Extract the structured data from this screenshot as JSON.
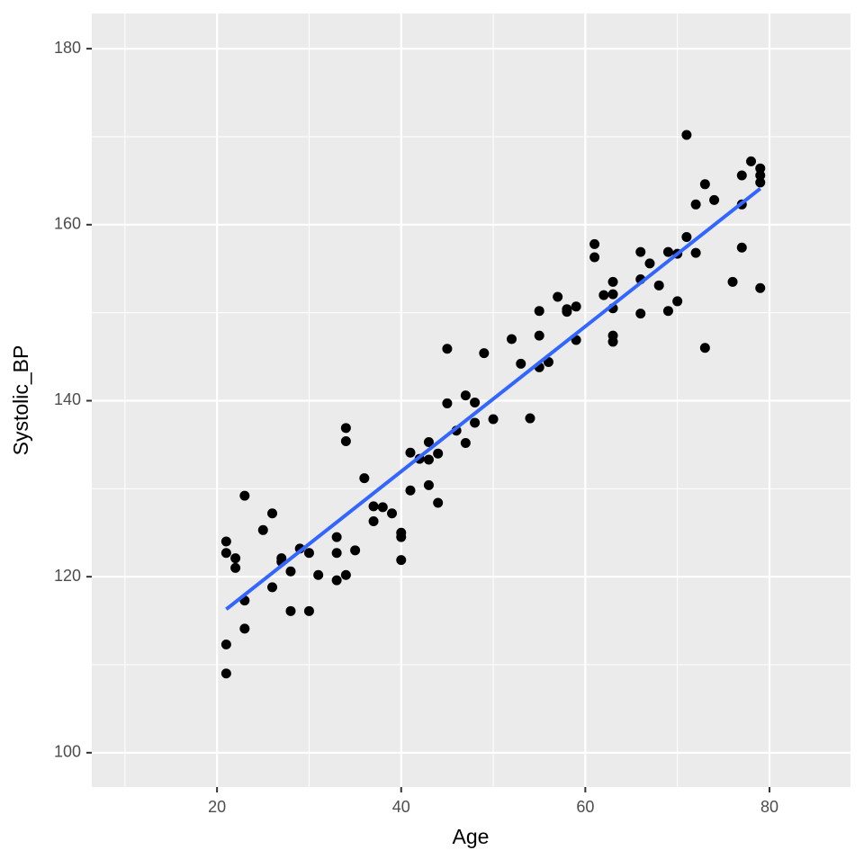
{
  "chart_data": {
    "type": "scatter",
    "xlabel": "Age",
    "ylabel": "Systolic_BP",
    "x": [
      21,
      21,
      21,
      21,
      22,
      22,
      23,
      23,
      23,
      25,
      26,
      26,
      27,
      27,
      28,
      28,
      29,
      30,
      30,
      31,
      33,
      33,
      33,
      34,
      34,
      34,
      35,
      36,
      37,
      37,
      38,
      39,
      40,
      40,
      40,
      41,
      41,
      42,
      43,
      43,
      43,
      44,
      44,
      45,
      45,
      46,
      47,
      47,
      48,
      48,
      49,
      50,
      52,
      53,
      54,
      55,
      55,
      55,
      56,
      57,
      58,
      58,
      59,
      59,
      61,
      61,
      62,
      63,
      63,
      63,
      63,
      63,
      66,
      66,
      66,
      67,
      68,
      69,
      69,
      70,
      70,
      71,
      71,
      72,
      72,
      73,
      73,
      74,
      76,
      77,
      77,
      77,
      78,
      79,
      79,
      79,
      79
    ],
    "y": [
      124.0,
      122.7,
      112.3,
      109.0,
      122.1,
      121.0,
      129.2,
      117.3,
      114.1,
      125.3,
      127.2,
      118.8,
      122.1,
      121.7,
      120.6,
      116.1,
      123.2,
      122.7,
      116.1,
      120.2,
      124.5,
      122.7,
      119.6,
      136.9,
      135.4,
      120.2,
      123.0,
      131.2,
      128.0,
      126.3,
      127.9,
      127.2,
      125.0,
      124.5,
      121.9,
      134.1,
      129.8,
      133.4,
      135.3,
      133.3,
      130.4,
      134.0,
      128.4,
      139.7,
      145.9,
      136.6,
      140.6,
      135.2,
      139.8,
      137.5,
      145.4,
      137.9,
      147.0,
      144.2,
      138.0,
      150.2,
      147.4,
      143.8,
      144.4,
      151.8,
      150.4,
      150.1,
      150.7,
      146.9,
      157.8,
      156.3,
      152.0,
      153.5,
      152.1,
      150.5,
      147.4,
      146.7,
      156.9,
      153.8,
      149.9,
      155.6,
      153.1,
      156.9,
      150.2,
      156.7,
      151.3,
      170.2,
      158.6,
      162.3,
      156.8,
      164.6,
      146.0,
      162.8,
      153.5,
      165.6,
      162.3,
      157.4,
      167.2,
      166.4,
      165.6,
      164.8,
      152.8
    ],
    "color": "#000000",
    "fit_line": {
      "color": "#3366FF",
      "x": [
        21,
        79
      ],
      "y": [
        116.3,
        164.1
      ]
    },
    "xlim": [
      6.4,
      88.8
    ],
    "ylim": [
      96.1,
      184.0
    ],
    "xticks": [
      20,
      40,
      60,
      80
    ],
    "yticks": [
      100,
      120,
      140,
      160,
      180
    ],
    "x_minor_breaks": [
      10,
      30,
      50,
      70
    ],
    "y_minor_breaks": [
      110,
      130,
      150,
      170
    ],
    "grid": true
  }
}
